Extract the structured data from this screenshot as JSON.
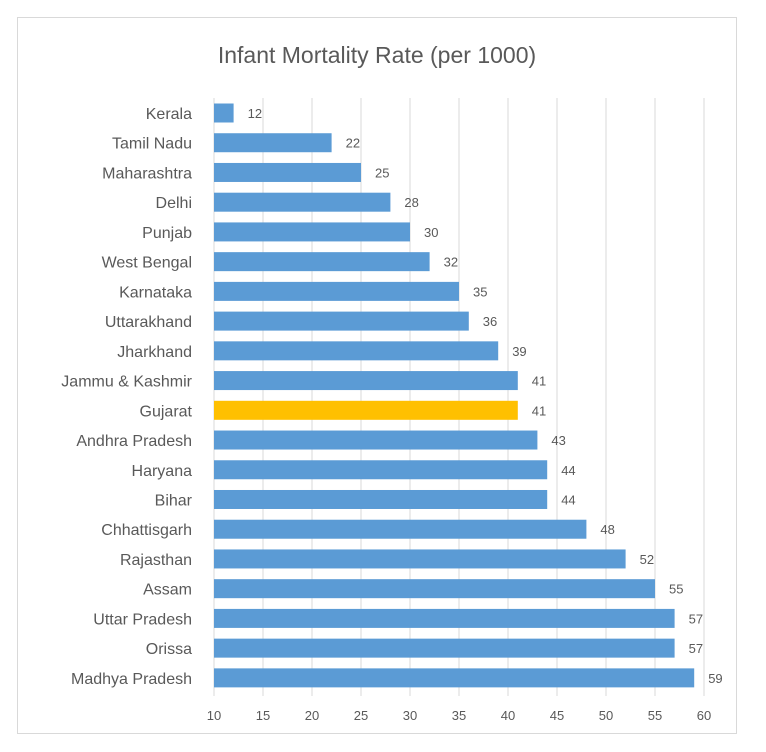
{
  "chart_data": {
    "type": "bar",
    "orientation": "horizontal",
    "title": "Infant Mortality Rate (per 1000)",
    "xlabel": "",
    "ylabel": "",
    "xlim": [
      10,
      60
    ],
    "ticks": [
      10,
      15,
      20,
      25,
      30,
      35,
      40,
      45,
      50,
      55,
      60
    ],
    "grid": true,
    "categories": [
      "Kerala",
      "Tamil Nadu",
      "Maharashtra",
      "Delhi",
      "Punjab",
      "West Bengal",
      "Karnataka",
      "Uttarakhand",
      "Jharkhand",
      "Jammu & Kashmir",
      "Gujarat",
      "Andhra Pradesh",
      "Haryana",
      "Bihar",
      "Chhattisgarh",
      "Rajasthan",
      "Assam",
      "Uttar Pradesh",
      "Orissa",
      "Madhya Pradesh"
    ],
    "values": [
      12,
      22,
      25,
      28,
      30,
      32,
      35,
      36,
      39,
      41,
      41,
      43,
      44,
      44,
      48,
      52,
      55,
      57,
      57,
      59
    ],
    "bar_color": "#5b9bd5",
    "highlight_category": "Gujarat",
    "highlight_color": "#ffc000"
  }
}
